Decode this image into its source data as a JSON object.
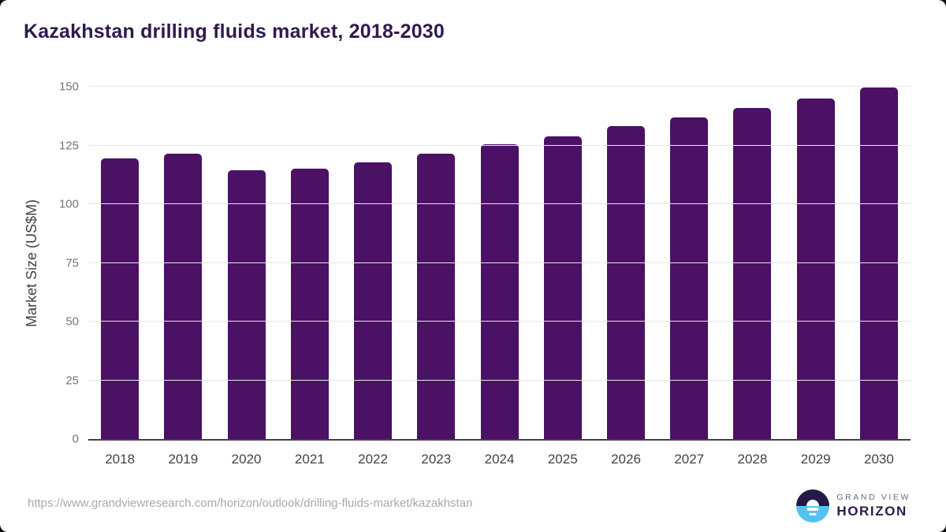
{
  "header": {
    "title": "Kazakhstan drilling fluids market, 2018-2030"
  },
  "chart_data": {
    "type": "bar",
    "title": "Kazakhstan drilling fluids market, 2018-2030",
    "categories": [
      "2018",
      "2019",
      "2020",
      "2021",
      "2022",
      "2023",
      "2024",
      "2025",
      "2026",
      "2027",
      "2028",
      "2029",
      "2030"
    ],
    "values": [
      119.4,
      121.4,
      114.3,
      115.1,
      117.7,
      121.4,
      125.4,
      128.7,
      133.1,
      136.9,
      141.0,
      145.0,
      149.8
    ],
    "xlabel": "",
    "ylabel": "Market Size (US$M)",
    "ylim": [
      0,
      150
    ],
    "yticks": [
      0,
      25,
      50,
      75,
      100,
      125,
      150
    ],
    "grid": true,
    "legend": "none",
    "bar_color": "#4a1164",
    "title_color": "#2f1a4e",
    "grid_color": "#e8e8e8",
    "axis_color": "#424242"
  },
  "footer": {
    "source_url": "https://www.grandviewresearch.com/horizon/outlook/drilling-fluids-market/kazakhstan",
    "logo": {
      "line1": "GRAND VIEW",
      "line2": "HORIZON",
      "mark_top_color": "#241a47",
      "mark_bottom_color": "#55c3f1"
    }
  }
}
